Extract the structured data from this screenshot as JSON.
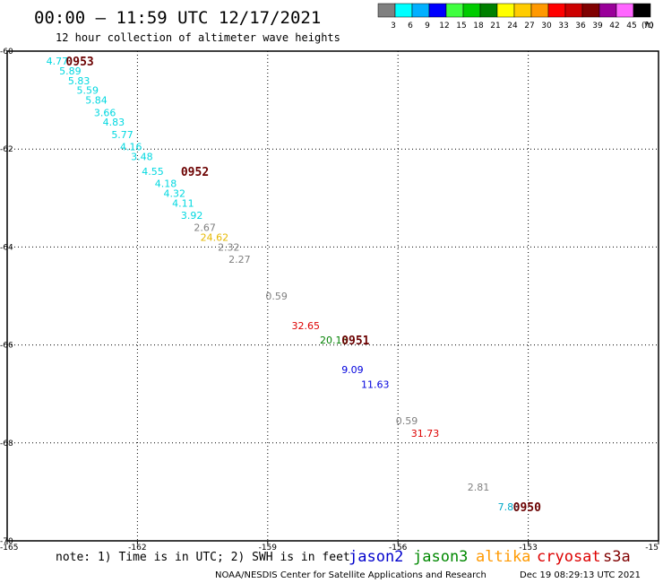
{
  "header": {
    "title": "00:00 – 11:59 UTC 12/17/2021",
    "subtitle": "12 hour collection of altimeter wave heights"
  },
  "legend": {
    "labels": [
      "3",
      "6",
      "9",
      "12",
      "15",
      "18",
      "21",
      "24",
      "27",
      "30",
      "33",
      "36",
      "39",
      "42",
      "45",
      "70"
    ],
    "unit": "(ft)",
    "colors": [
      "#808080",
      "#00ffff",
      "#00b0ff",
      "#0000ff",
      "#40ff40",
      "#00cc00",
      "#008000",
      "#ffff00",
      "#ffcc00",
      "#ff9900",
      "#ff0000",
      "#cc0000",
      "#800000",
      "#990099",
      "#ff66ff",
      "#000000"
    ]
  },
  "axes": {
    "x_ticks": [
      "-165",
      "-162",
      "-159",
      "-156",
      "-153",
      "-15"
    ],
    "y_ticks": [
      "-60",
      "-62",
      "-64",
      "-66",
      "-68",
      "-70"
    ]
  },
  "observations": [
    {
      "text": "4.77",
      "lon": -164.1,
      "lat": -60.2,
      "color": "#00d8e0"
    },
    {
      "text": "5.89",
      "lon": -163.8,
      "lat": -60.4,
      "color": "#00d8e0"
    },
    {
      "text": "5.83",
      "lon": -163.6,
      "lat": -60.6,
      "color": "#00d8e0"
    },
    {
      "text": "5.59",
      "lon": -163.4,
      "lat": -60.8,
      "color": "#00d8e0"
    },
    {
      "text": "5.84",
      "lon": -163.2,
      "lat": -61.0,
      "color": "#00d8e0"
    },
    {
      "text": "3.66",
      "lon": -163.0,
      "lat": -61.25,
      "color": "#00d8e0"
    },
    {
      "text": "4.83",
      "lon": -162.8,
      "lat": -61.45,
      "color": "#00d8e0"
    },
    {
      "text": "5.77",
      "lon": -162.6,
      "lat": -61.7,
      "color": "#00d8e0"
    },
    {
      "text": "4.16",
      "lon": -162.4,
      "lat": -61.95,
      "color": "#00d8e0"
    },
    {
      "text": "3.48",
      "lon": -162.15,
      "lat": -62.15,
      "color": "#00d8e0"
    },
    {
      "text": "4.55",
      "lon": -161.9,
      "lat": -62.45,
      "color": "#00d8e0"
    },
    {
      "text": "4.18",
      "lon": -161.6,
      "lat": -62.7,
      "color": "#00d8e0"
    },
    {
      "text": "4.32",
      "lon": -161.4,
      "lat": -62.9,
      "color": "#00d8e0"
    },
    {
      "text": "4.11",
      "lon": -161.2,
      "lat": -63.1,
      "color": "#00d8e0"
    },
    {
      "text": "3.92",
      "lon": -161.0,
      "lat": -63.35,
      "color": "#00d8e0"
    },
    {
      "text": "2.67",
      "lon": -160.7,
      "lat": -63.6,
      "color": "#808080"
    },
    {
      "text": "24.62",
      "lon": -160.55,
      "lat": -63.8,
      "color": "#e6b800"
    },
    {
      "text": "2.32",
      "lon": -160.15,
      "lat": -64.0,
      "color": "#808080"
    },
    {
      "text": "2.27",
      "lon": -159.9,
      "lat": -64.25,
      "color": "#808080"
    },
    {
      "text": "0.59",
      "lon": -159.05,
      "lat": -65.0,
      "color": "#808080"
    },
    {
      "text": "32.65",
      "lon": -158.45,
      "lat": -65.6,
      "color": "#dd0000"
    },
    {
      "text": "20.15",
      "lon": -157.8,
      "lat": -65.9,
      "color": "#008000"
    },
    {
      "text": "9.09",
      "lon": -157.3,
      "lat": -66.5,
      "color": "#0000dd"
    },
    {
      "text": "11.63",
      "lon": -156.85,
      "lat": -66.8,
      "color": "#0000dd"
    },
    {
      "text": "0.59",
      "lon": -156.05,
      "lat": -67.55,
      "color": "#808080"
    },
    {
      "text": "31.73",
      "lon": -155.7,
      "lat": -67.8,
      "color": "#dd0000"
    },
    {
      "text": "2.81",
      "lon": -154.4,
      "lat": -68.9,
      "color": "#808080"
    },
    {
      "text": "7.83",
      "lon": -153.7,
      "lat": -69.3,
      "color": "#00a8c8"
    }
  ],
  "time_labels": [
    {
      "text": "0953",
      "lon": -163.65,
      "lat": -60.2
    },
    {
      "text": "0952",
      "lon": -161.0,
      "lat": -62.45
    },
    {
      "text": "0951",
      "lon": -157.3,
      "lat": -65.9
    },
    {
      "text": "0950",
      "lon": -153.35,
      "lat": -69.3
    }
  ],
  "note": "note: 1) Time is in UTC; 2) SWH is in feet",
  "satellites": [
    {
      "name": "jason2",
      "color": "#0000cc"
    },
    {
      "name": "jason3",
      "color": "#008800"
    },
    {
      "name": "altika",
      "color": "#ff9900"
    },
    {
      "name": "cryosat",
      "color": "#dd0000"
    },
    {
      "name": "s3a",
      "color": "#800000"
    }
  ],
  "footer": {
    "credit": "NOAA/NESDIS Center for Satellite Applications and Research",
    "timestamp": "Dec 19 08:29:13 UTC 2021"
  }
}
